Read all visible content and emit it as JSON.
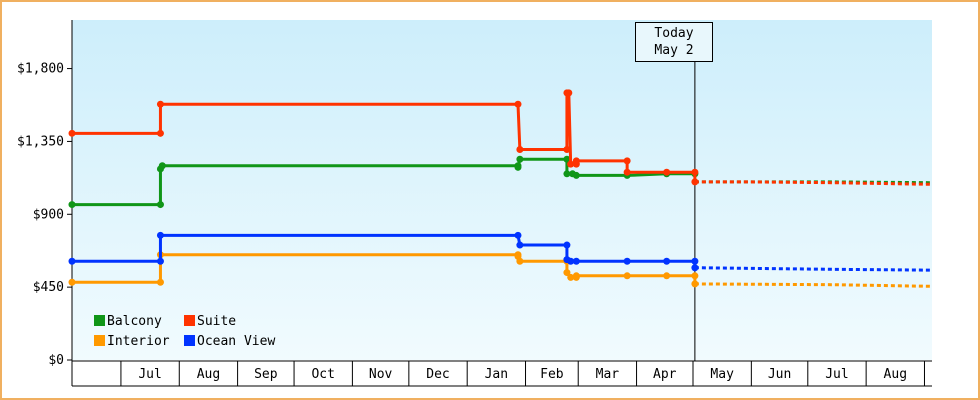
{
  "chart_data": {
    "type": "line",
    "step": true,
    "yticks": [
      "$0",
      "$450",
      "$900",
      "$1,350",
      "$1,800"
    ],
    "ytick_values": [
      0,
      450,
      900,
      1350,
      1800
    ],
    "ylim": [
      0,
      2100
    ],
    "months": [
      "Jul",
      "Aug",
      "Sep",
      "Oct",
      "Nov",
      "Dec",
      "Jan",
      "Feb",
      "Mar",
      "Apr",
      "May",
      "Jun",
      "Jul",
      "Aug"
    ],
    "xlim": [
      "2014-06-05",
      "2015-09-05"
    ],
    "today": {
      "label": "Today",
      "date_label": "May 2",
      "date": "2015-05-02"
    },
    "colors": {
      "Balcony": "#109618",
      "Suite": "#ff3300",
      "Interior": "#ff9900",
      "Ocean View": "#0033ff"
    },
    "series": [
      {
        "name": "Balcony",
        "points": [
          [
            "2014-06-05",
            960
          ],
          [
            "2014-07-22",
            960
          ],
          [
            "2014-07-22",
            1180
          ],
          [
            "2014-07-23",
            1200
          ],
          [
            "2015-01-28",
            1200
          ],
          [
            "2015-01-28",
            1190
          ],
          [
            "2015-01-29",
            1240
          ],
          [
            "2015-02-23",
            1240
          ],
          [
            "2015-02-23",
            1150
          ],
          [
            "2015-02-26",
            1150
          ],
          [
            "2015-02-28",
            1140
          ],
          [
            "2015-03-27",
            1140
          ],
          [
            "2015-04-17",
            1150
          ],
          [
            "2015-05-02",
            1150
          ]
        ],
        "forecast": [
          [
            "2015-05-02",
            1100
          ],
          [
            "2015-07-15",
            1100
          ],
          [
            "2015-09-05",
            1095
          ]
        ]
      },
      {
        "name": "Suite",
        "points": [
          [
            "2014-06-05",
            1400
          ],
          [
            "2014-07-22",
            1400
          ],
          [
            "2014-07-22",
            1580
          ],
          [
            "2015-01-28",
            1580
          ],
          [
            "2015-01-29",
            1300
          ],
          [
            "2015-02-23",
            1300
          ],
          [
            "2015-02-23",
            1650
          ],
          [
            "2015-02-24",
            1650
          ],
          [
            "2015-02-25",
            1210
          ],
          [
            "2015-02-28",
            1210
          ],
          [
            "2015-02-28",
            1230
          ],
          [
            "2015-03-27",
            1230
          ],
          [
            "2015-03-27",
            1160
          ],
          [
            "2015-04-17",
            1160
          ],
          [
            "2015-05-02",
            1160
          ],
          [
            "2015-05-02",
            1100
          ]
        ],
        "forecast": [
          [
            "2015-05-02",
            1100
          ],
          [
            "2015-06-01",
            1100
          ],
          [
            "2015-07-15",
            1095
          ],
          [
            "2015-09-05",
            1085
          ]
        ]
      },
      {
        "name": "Interior",
        "points": [
          [
            "2014-06-05",
            480
          ],
          [
            "2014-07-22",
            480
          ],
          [
            "2014-07-22",
            650
          ],
          [
            "2015-01-28",
            650
          ],
          [
            "2015-01-28",
            640
          ],
          [
            "2015-01-29",
            610
          ],
          [
            "2015-02-23",
            610
          ],
          [
            "2015-02-23",
            540
          ],
          [
            "2015-02-25",
            510
          ],
          [
            "2015-02-28",
            510
          ],
          [
            "2015-02-28",
            520
          ],
          [
            "2015-03-27",
            520
          ],
          [
            "2015-04-17",
            520
          ],
          [
            "2015-05-02",
            520
          ],
          [
            "2015-05-02",
            470
          ]
        ],
        "forecast": [
          [
            "2015-05-02",
            470
          ],
          [
            "2015-07-15",
            465
          ],
          [
            "2015-09-05",
            455
          ]
        ]
      },
      {
        "name": "Ocean View",
        "points": [
          [
            "2014-06-05",
            610
          ],
          [
            "2014-07-22",
            610
          ],
          [
            "2014-07-22",
            770
          ],
          [
            "2015-01-28",
            770
          ],
          [
            "2015-01-29",
            710
          ],
          [
            "2015-02-23",
            710
          ],
          [
            "2015-02-23",
            620
          ],
          [
            "2015-02-25",
            610
          ],
          [
            "2015-02-28",
            610
          ],
          [
            "2015-03-27",
            610
          ],
          [
            "2015-04-17",
            610
          ],
          [
            "2015-05-02",
            610
          ],
          [
            "2015-05-02",
            570
          ]
        ],
        "forecast": [
          [
            "2015-05-02",
            570
          ],
          [
            "2015-07-15",
            560
          ],
          [
            "2015-09-05",
            555
          ]
        ]
      }
    ]
  }
}
